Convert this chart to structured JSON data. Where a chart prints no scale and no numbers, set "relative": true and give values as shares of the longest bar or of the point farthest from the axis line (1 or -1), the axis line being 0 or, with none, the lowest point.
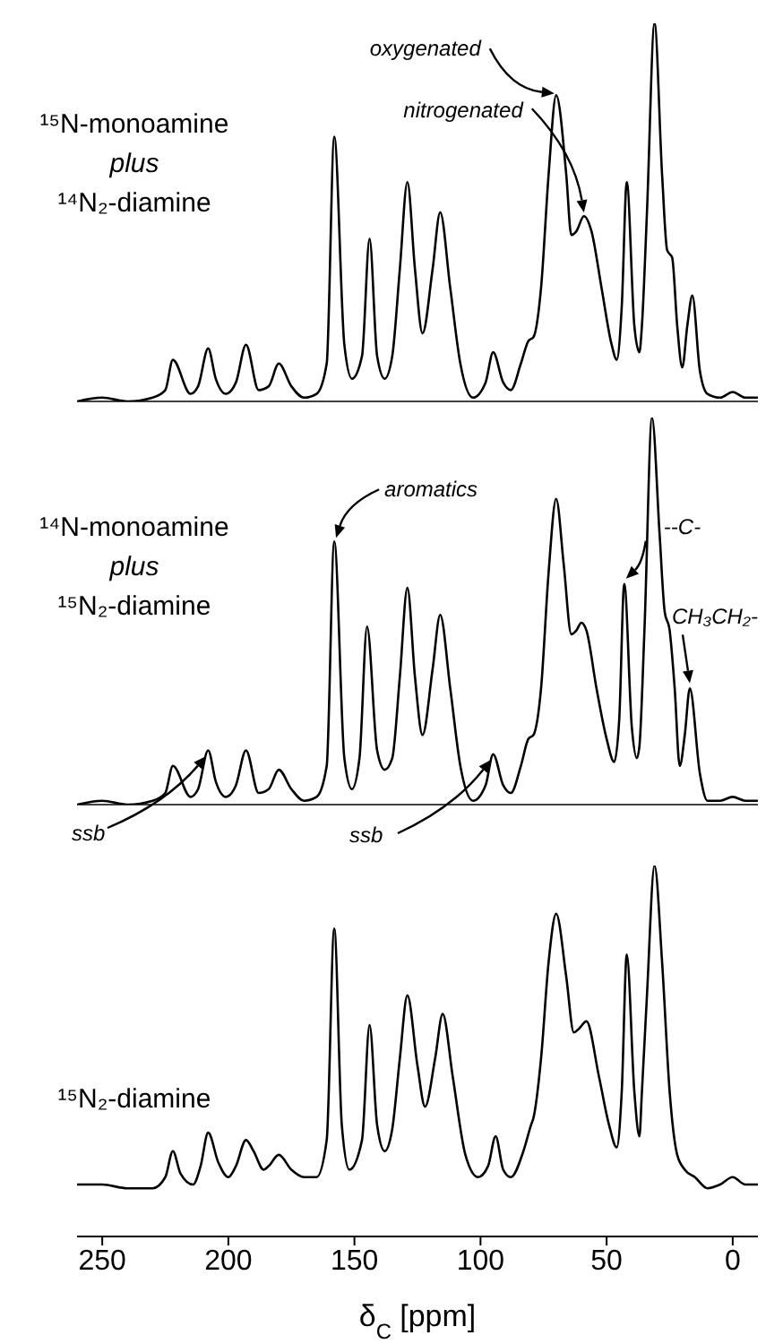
{
  "chart_data": [
    {
      "type": "line",
      "relative": true,
      "xlim": [
        260,
        -10
      ],
      "tick_labels": false,
      "series": [
        {
          "name": "¹⁵N-monoamine plus ¹⁴N₂-diamine",
          "color": "#000000",
          "x": [
            -10,
            -5,
            0,
            5,
            10,
            13,
            16,
            18,
            20,
            22,
            24,
            26,
            28,
            31,
            34,
            36,
            37,
            39,
            42,
            44,
            46,
            48,
            52,
            56,
            59,
            62,
            64,
            66,
            70,
            73,
            76,
            79,
            81,
            84,
            88,
            91,
            95,
            98,
            103,
            108,
            112,
            116,
            119,
            123,
            126,
            129,
            132,
            135,
            138,
            141,
            144,
            147,
            151,
            154,
            158,
            161,
            165,
            170,
            175,
            180,
            184,
            188,
            193,
            197,
            201,
            205,
            208,
            212,
            215,
            222,
            225,
            230,
            240,
            250,
            260
          ],
          "values": [
            0.01,
            0.01,
            0.025,
            0.01,
            0.02,
            0.08,
            0.28,
            0.2,
            0.09,
            0.2,
            0.38,
            0.4,
            0.6,
            1.0,
            0.5,
            0.2,
            0.13,
            0.2,
            0.58,
            0.25,
            0.11,
            0.15,
            0.3,
            0.45,
            0.49,
            0.45,
            0.44,
            0.6,
            0.81,
            0.6,
            0.3,
            0.17,
            0.16,
            0.1,
            0.03,
            0.05,
            0.13,
            0.05,
            0.01,
            0.1,
            0.3,
            0.5,
            0.35,
            0.18,
            0.35,
            0.58,
            0.35,
            0.12,
            0.06,
            0.12,
            0.43,
            0.12,
            0.06,
            0.15,
            0.7,
            0.1,
            0.02,
            0.01,
            0.04,
            0.1,
            0.04,
            0.03,
            0.15,
            0.05,
            0.02,
            0.06,
            0.14,
            0.04,
            0.02,
            0.11,
            0.03,
            0.01,
            0.0,
            0.01,
            0.0
          ]
        }
      ],
      "annotations": [
        {
          "text": "oxygenated",
          "x": 70,
          "y": 0.81
        },
        {
          "text": "nitrogenated",
          "x": 59,
          "y": 0.49
        }
      ]
    },
    {
      "type": "line",
      "relative": true,
      "xlim": [
        260,
        -10
      ],
      "tick_labels": false,
      "series": [
        {
          "name": "¹⁴N-monoamine plus ¹⁵N₂-diamine",
          "color": "#000000",
          "x": [
            -10,
            -5,
            0,
            5,
            10,
            13,
            17,
            19,
            21,
            23,
            25,
            27,
            29,
            32,
            35,
            37,
            38,
            40,
            43,
            45,
            47,
            50,
            54,
            58,
            60,
            62,
            64,
            67,
            70,
            73,
            76,
            79,
            81,
            84,
            88,
            91,
            95,
            98,
            103,
            108,
            112,
            116,
            119,
            123,
            126,
            129,
            132,
            135,
            138,
            141,
            145,
            148,
            151,
            154,
            158,
            161,
            165,
            170,
            175,
            180,
            184,
            188,
            193,
            197,
            201,
            205,
            208,
            212,
            215,
            222,
            225,
            230,
            240,
            250,
            260
          ],
          "values": [
            0.01,
            0.01,
            0.02,
            0.01,
            0.01,
            0.08,
            0.3,
            0.18,
            0.1,
            0.3,
            0.45,
            0.5,
            0.7,
            1.0,
            0.45,
            0.15,
            0.12,
            0.2,
            0.57,
            0.22,
            0.11,
            0.17,
            0.3,
            0.45,
            0.47,
            0.45,
            0.44,
            0.62,
            0.79,
            0.6,
            0.3,
            0.18,
            0.17,
            0.1,
            0.03,
            0.05,
            0.13,
            0.05,
            0.01,
            0.1,
            0.3,
            0.49,
            0.35,
            0.18,
            0.33,
            0.56,
            0.33,
            0.12,
            0.09,
            0.14,
            0.46,
            0.12,
            0.04,
            0.12,
            0.68,
            0.1,
            0.02,
            0.01,
            0.04,
            0.09,
            0.04,
            0.03,
            0.14,
            0.05,
            0.02,
            0.06,
            0.14,
            0.04,
            0.02,
            0.1,
            0.03,
            0.01,
            0.0,
            0.01,
            0.0
          ]
        }
      ],
      "annotations": [
        {
          "text": "aromatics",
          "x": 158,
          "y": 0.68
        },
        "ssb",
        "ssb",
        {
          "text": "--C-",
          "x": 43,
          "y": 0.57
        },
        {
          "text": "CH₃CH₂-",
          "x": 17,
          "y": 0.3
        }
      ]
    },
    {
      "type": "line",
      "relative": true,
      "xlim": [
        260,
        -10
      ],
      "xticks": [
        250,
        200,
        150,
        100,
        50,
        0
      ],
      "xlabel": "δ$_{C}$ [ppm]",
      "tick_labels": "x",
      "series": [
        {
          "name": "¹⁵N₂-diamine",
          "color": "#000000",
          "x": [
            -10,
            -5,
            0,
            5,
            10,
            15,
            19,
            22,
            25,
            28,
            31,
            34,
            36,
            37,
            39,
            42,
            44,
            46,
            49,
            53,
            58,
            61,
            63,
            66,
            70,
            73,
            76,
            79,
            80,
            83,
            88,
            91,
            94,
            97,
            101,
            106,
            111,
            115,
            118,
            122,
            125,
            129,
            132,
            135,
            138,
            141,
            144,
            147,
            152,
            155,
            158,
            161,
            165,
            170,
            175,
            180,
            184,
            186,
            190,
            193,
            197,
            200,
            204,
            208,
            211,
            214,
            219,
            222,
            225,
            230,
            240,
            250,
            260
          ],
          "values": [
            0.14,
            0.14,
            0.16,
            0.14,
            0.13,
            0.16,
            0.18,
            0.22,
            0.39,
            0.74,
            1.0,
            0.65,
            0.39,
            0.27,
            0.39,
            0.76,
            0.39,
            0.24,
            0.3,
            0.43,
            0.58,
            0.56,
            0.55,
            0.7,
            0.87,
            0.74,
            0.48,
            0.32,
            0.3,
            0.23,
            0.16,
            0.18,
            0.27,
            0.19,
            0.16,
            0.22,
            0.43,
            0.6,
            0.48,
            0.35,
            0.46,
            0.65,
            0.48,
            0.29,
            0.23,
            0.3,
            0.57,
            0.26,
            0.18,
            0.3,
            0.83,
            0.26,
            0.16,
            0.16,
            0.18,
            0.22,
            0.19,
            0.18,
            0.23,
            0.26,
            0.19,
            0.16,
            0.2,
            0.28,
            0.19,
            0.14,
            0.17,
            0.23,
            0.16,
            0.13,
            0.13,
            0.14,
            0.14
          ]
        }
      ]
    }
  ]
}
